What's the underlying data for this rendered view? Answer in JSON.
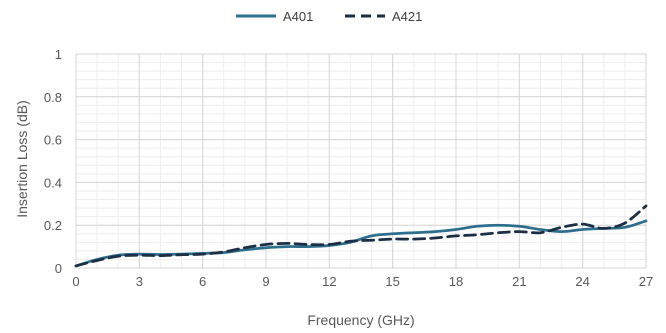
{
  "chart_data": {
    "type": "line",
    "xlabel": "Frequency (GHz)",
    "ylabel": "Insertion Loss (dB)",
    "xlim": [
      0,
      27
    ],
    "ylim": [
      0,
      1
    ],
    "x_ticks": [
      "0",
      "3",
      "6",
      "9",
      "12",
      "15",
      "18",
      "21",
      "24",
      "27"
    ],
    "y_ticks": [
      "0",
      "0.2",
      "0.4",
      "0.6",
      "0.8",
      "1"
    ],
    "grid": true,
    "minor_grid": true,
    "legend_position": "top-center",
    "series": [
      {
        "name": "A401",
        "color": "#2e6f8e",
        "dash": "solid",
        "x": [
          0,
          1,
          2,
          3,
          4,
          5,
          6,
          7,
          8,
          9,
          10,
          11,
          12,
          13,
          14,
          15,
          16,
          17,
          18,
          19,
          20,
          21,
          22,
          23,
          24,
          25,
          26,
          27
        ],
        "y": [
          0.01,
          0.04,
          0.06,
          0.065,
          0.063,
          0.065,
          0.068,
          0.072,
          0.085,
          0.095,
          0.1,
          0.1,
          0.105,
          0.12,
          0.15,
          0.16,
          0.165,
          0.17,
          0.18,
          0.195,
          0.2,
          0.195,
          0.18,
          0.17,
          0.18,
          0.185,
          0.19,
          0.22
        ]
      },
      {
        "name": "A421",
        "color": "#1d2f45",
        "dash": "dashed",
        "x": [
          0,
          1,
          2,
          3,
          4,
          5,
          6,
          7,
          8,
          9,
          10,
          11,
          12,
          13,
          14,
          15,
          16,
          17,
          18,
          19,
          20,
          21,
          22,
          23,
          24,
          25,
          26,
          27
        ],
        "y": [
          0.01,
          0.035,
          0.055,
          0.06,
          0.058,
          0.062,
          0.065,
          0.075,
          0.095,
          0.11,
          0.115,
          0.11,
          0.11,
          0.125,
          0.13,
          0.135,
          0.135,
          0.14,
          0.15,
          0.155,
          0.165,
          0.17,
          0.165,
          0.19,
          0.205,
          0.185,
          0.21,
          0.29
        ]
      }
    ]
  }
}
